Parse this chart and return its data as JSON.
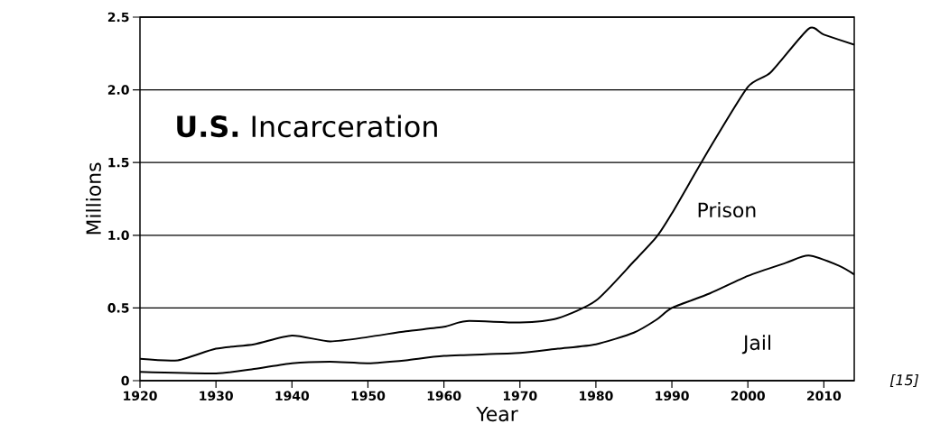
{
  "chart_data": {
    "type": "line",
    "title": "**U.S.** Incarceration",
    "xlabel": "Year",
    "ylabel": "Millions",
    "annotations": [
      "[15]"
    ],
    "xlim": [
      1920,
      2014
    ],
    "ylim": [
      0,
      2.5
    ],
    "xticks": [
      1920,
      1930,
      1940,
      1950,
      1960,
      1970,
      1980,
      1990,
      2000,
      2010
    ],
    "yticks": [
      {
        "value": 0,
        "label": "0"
      },
      {
        "value": 0.5,
        "label": "0.5"
      },
      {
        "value": 1.0,
        "label": "1.0"
      },
      {
        "value": 1.5,
        "label": "1.5"
      },
      {
        "value": 2.0,
        "label": "2.0"
      },
      {
        "value": 2.5,
        "label": "2.5"
      }
    ],
    "grid": "y",
    "marker": "none",
    "line_style": "solid",
    "series": [
      {
        "name": "Prison",
        "color": "#000000",
        "x": [
          1920,
          1925,
          1930,
          1935,
          1940,
          1945,
          1950,
          1955,
          1960,
          1963,
          1970,
          1975,
          1980,
          1985,
          1988,
          1990,
          1995,
          2000,
          2003,
          2008,
          2010,
          2014
        ],
        "values": [
          0.15,
          0.14,
          0.22,
          0.25,
          0.31,
          0.27,
          0.3,
          0.34,
          0.37,
          0.41,
          0.4,
          0.43,
          0.55,
          0.82,
          0.99,
          1.15,
          1.6,
          2.02,
          2.12,
          2.42,
          2.38,
          2.31
        ]
      },
      {
        "name": "Jail",
        "color": "#000000",
        "x": [
          1920,
          1930,
          1935,
          1940,
          1945,
          1950,
          1955,
          1960,
          1970,
          1975,
          1980,
          1985,
          1988,
          1990,
          1995,
          2000,
          2005,
          2008,
          2012,
          2014
        ],
        "values": [
          0.06,
          0.05,
          0.08,
          0.12,
          0.13,
          0.12,
          0.14,
          0.17,
          0.19,
          0.22,
          0.25,
          0.33,
          0.42,
          0.5,
          0.6,
          0.72,
          0.81,
          0.86,
          0.79,
          0.73
        ]
      }
    ]
  }
}
